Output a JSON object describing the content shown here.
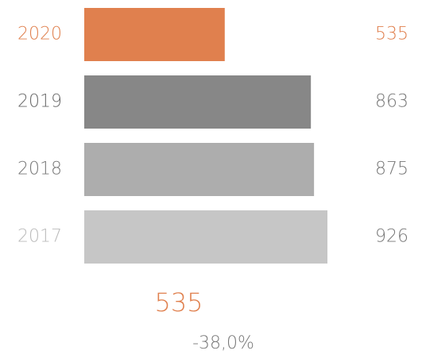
{
  "chart_data": {
    "type": "bar",
    "orientation": "horizontal",
    "categories": [
      "2020",
      "2019",
      "2018",
      "2017"
    ],
    "values": [
      535,
      863,
      875,
      926
    ],
    "colors": [
      "#e0804e",
      "#878787",
      "#adadad",
      "#c6c6c6"
    ],
    "summary": {
      "value": 535,
      "change": {
        "value": -38.0,
        "label": "-38,0%"
      }
    }
  }
}
